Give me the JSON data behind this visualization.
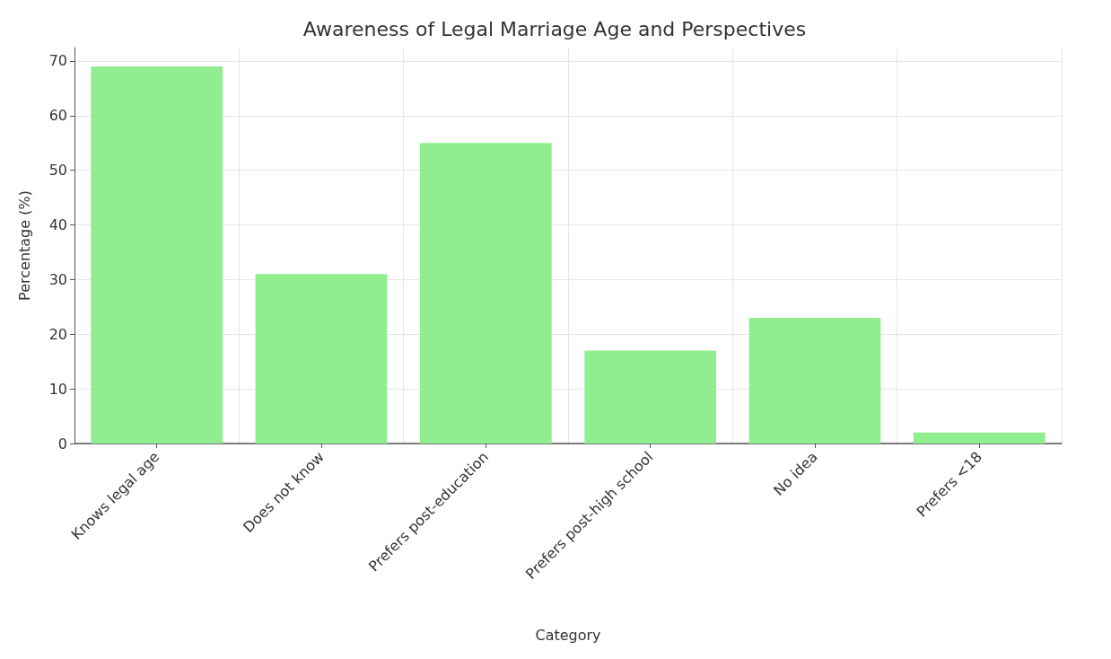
{
  "chart_data": {
    "type": "bar",
    "title": "Awareness of Legal Marriage Age and Perspectives",
    "xlabel": "Category",
    "ylabel": "Percentage (%)",
    "categories": [
      "Knows legal age",
      "Does not know",
      "Prefers post-education",
      "Prefers post-high school",
      "No idea",
      "Prefers <18"
    ],
    "values": [
      69,
      31,
      55,
      17,
      23,
      2
    ],
    "color": "#90ee90",
    "ylim": [
      0,
      72.45
    ],
    "yticks": [
      0,
      10,
      20,
      30,
      40,
      50,
      60,
      70
    ],
    "grid": true
  }
}
